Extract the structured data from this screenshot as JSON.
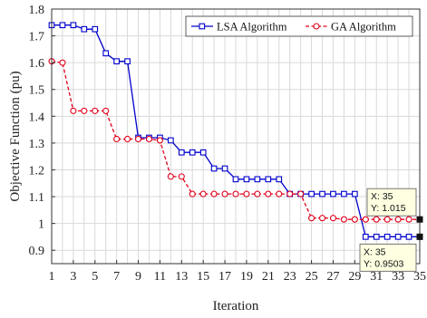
{
  "chart_data": {
    "type": "line",
    "title": "",
    "xlabel": "Iteration",
    "ylabel": "Objective Function (pu)",
    "xlim": [
      1,
      35
    ],
    "ylim": [
      0.85,
      1.8
    ],
    "xticks": [
      1,
      3,
      5,
      7,
      9,
      11,
      13,
      15,
      17,
      19,
      21,
      23,
      25,
      27,
      29,
      31,
      33,
      35
    ],
    "yticks": [
      0.9,
      1,
      1.1,
      1.2,
      1.3,
      1.4,
      1.5,
      1.6,
      1.7,
      1.8
    ],
    "ytick_labels": [
      "0.9",
      "1",
      "1.1",
      "1.2",
      "1.3",
      "1.4",
      "1.5",
      "1.6",
      "1.7",
      "1.8"
    ],
    "grid": true,
    "legend_position": "top-right",
    "x": [
      1,
      2,
      3,
      4,
      5,
      6,
      7,
      8,
      9,
      10,
      11,
      12,
      13,
      14,
      15,
      16,
      17,
      18,
      19,
      20,
      21,
      22,
      23,
      24,
      25,
      26,
      27,
      28,
      29,
      30,
      31,
      32,
      33,
      34,
      35
    ],
    "series": [
      {
        "name": "LSA Algorithm",
        "color": "#0000cc",
        "line_style": "solid",
        "marker": "square",
        "values": [
          1.74,
          1.74,
          1.74,
          1.725,
          1.725,
          1.635,
          1.605,
          1.605,
          1.32,
          1.32,
          1.32,
          1.31,
          1.265,
          1.265,
          1.265,
          1.205,
          1.205,
          1.165,
          1.165,
          1.165,
          1.165,
          1.165,
          1.11,
          1.11,
          1.11,
          1.11,
          1.11,
          1.11,
          1.11,
          0.9503,
          0.9503,
          0.9503,
          0.9503,
          0.9503,
          0.9503
        ]
      },
      {
        "name": "GA Algorithm",
        "color": "#e0001a",
        "line_style": "dashed",
        "marker": "circle",
        "values": [
          1.605,
          1.6,
          1.42,
          1.42,
          1.42,
          1.42,
          1.315,
          1.315,
          1.315,
          1.315,
          1.31,
          1.175,
          1.175,
          1.11,
          1.11,
          1.11,
          1.11,
          1.11,
          1.11,
          1.11,
          1.11,
          1.11,
          1.11,
          1.11,
          1.02,
          1.02,
          1.02,
          1.015,
          1.015,
          1.015,
          1.015,
          1.015,
          1.015,
          1.015,
          1.015
        ]
      }
    ],
    "annotations": [
      {
        "series": "GA Algorithm",
        "x": 35,
        "y": 1.015,
        "text_x": "X: 35",
        "text_y": "Y: 1.015",
        "placement": "above-left"
      },
      {
        "series": "LSA Algorithm",
        "x": 35,
        "y": 0.9503,
        "text_x": "X: 35",
        "text_y": "Y: 0.9503",
        "placement": "below-left"
      }
    ]
  }
}
